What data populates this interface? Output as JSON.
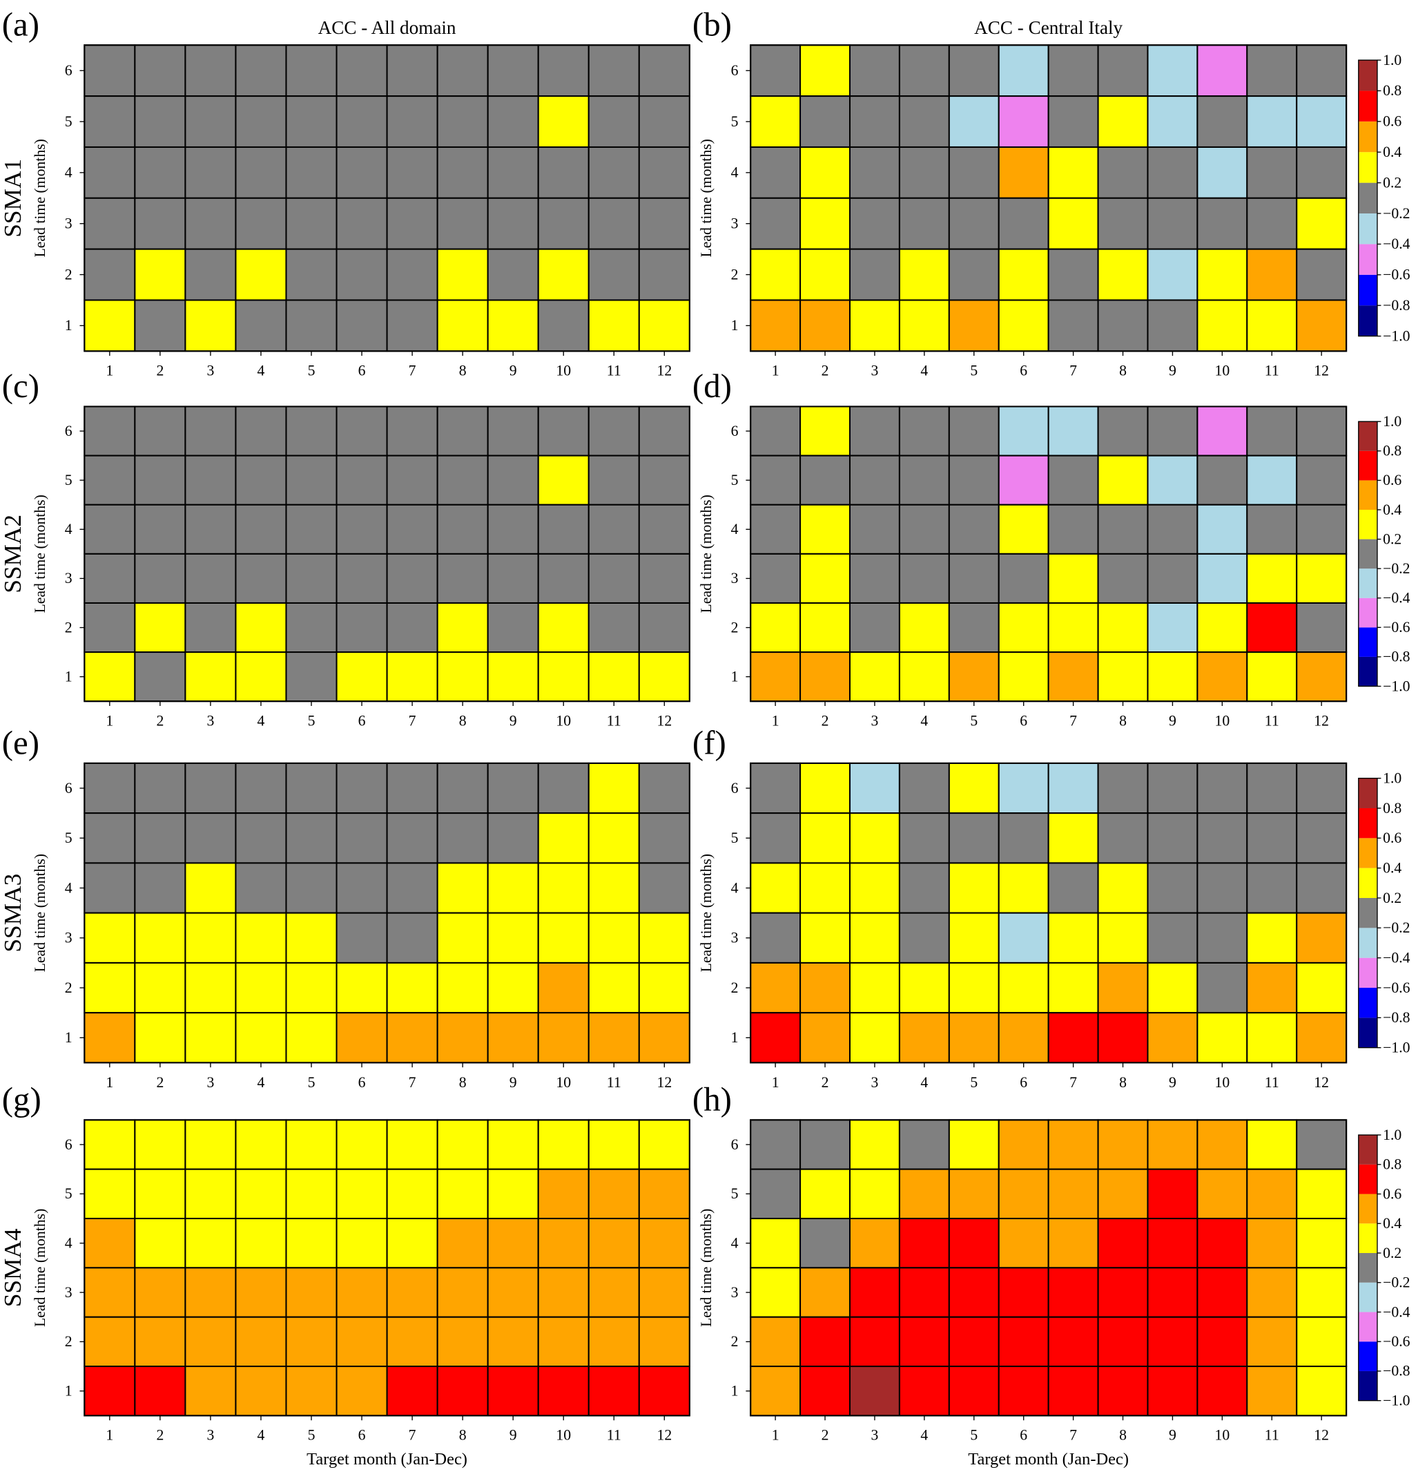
{
  "chart_data": {
    "type": "heatmap",
    "colorbar": {
      "bounds": [
        -1.0,
        -0.8,
        -0.6,
        -0.4,
        -0.2,
        0.2,
        0.4,
        0.6,
        0.8,
        1.0
      ],
      "tick_labels": [
        "−1.0",
        "−0.8",
        "−0.6",
        "−0.4",
        "−0.2",
        "0.2",
        "0.4",
        "0.6",
        "0.8",
        "1.0"
      ],
      "colors": [
        "#00008b",
        "#0000ff",
        "#ee82ee",
        "#add8e6",
        "#808080",
        "#ffff00",
        "#ffa500",
        "#ff0000",
        "#a52a2a"
      ]
    },
    "x_ticks": [
      "1",
      "2",
      "3",
      "4",
      "5",
      "6",
      "7",
      "8",
      "9",
      "10",
      "11",
      "12"
    ],
    "y_ticks": [
      "6",
      "5",
      "4",
      "3",
      "2",
      "1"
    ],
    "ylabel": "Lead time (months)",
    "xlabel": "Target month (Jan-Dec)",
    "note": "grid values are bin midpoints; rows ordered lead time 6 (top) to 1 (bottom), columns months 1-12",
    "panels": [
      {
        "letter": "(a)",
        "title": "ACC - All domain",
        "row_label": "SSMA1",
        "grid": [
          [
            0,
            0,
            0,
            0,
            0,
            0,
            0,
            0,
            0,
            0,
            0,
            0
          ],
          [
            0,
            0,
            0,
            0,
            0,
            0,
            0,
            0,
            0,
            0.3,
            0,
            0
          ],
          [
            0,
            0,
            0,
            0,
            0,
            0,
            0,
            0,
            0,
            0,
            0,
            0
          ],
          [
            0,
            0,
            0,
            0,
            0,
            0,
            0,
            0,
            0,
            0,
            0,
            0
          ],
          [
            0,
            0.3,
            0,
            0.3,
            0,
            0,
            0,
            0.3,
            0,
            0.3,
            0,
            0
          ],
          [
            0.3,
            0,
            0.3,
            0,
            0,
            0,
            0,
            0.3,
            0.3,
            0,
            0.3,
            0.3
          ]
        ]
      },
      {
        "letter": "(b)",
        "title": "ACC - Central Italy",
        "grid": [
          [
            0,
            0.3,
            0,
            0,
            0,
            -0.3,
            0,
            0,
            -0.3,
            -0.5,
            0,
            0
          ],
          [
            0.3,
            0,
            0,
            0,
            -0.3,
            -0.5,
            0,
            0.3,
            -0.3,
            0,
            -0.3,
            -0.3
          ],
          [
            0,
            0.3,
            0,
            0,
            0,
            0.5,
            0.3,
            0,
            0,
            -0.3,
            0,
            0
          ],
          [
            0,
            0.3,
            0,
            0,
            0,
            0,
            0.3,
            0,
            0,
            0,
            0,
            0.3
          ],
          [
            0.3,
            0.3,
            0,
            0.3,
            0,
            0.3,
            0,
            0.3,
            -0.3,
            0.3,
            0.5,
            0
          ],
          [
            0.5,
            0.5,
            0.3,
            0.3,
            0.5,
            0.3,
            0,
            0,
            0,
            0.3,
            0.3,
            0.5
          ]
        ]
      },
      {
        "letter": "(c)",
        "row_label": "SSMA2",
        "grid": [
          [
            0,
            0,
            0,
            0,
            0,
            0,
            0,
            0,
            0,
            0,
            0,
            0
          ],
          [
            0,
            0,
            0,
            0,
            0,
            0,
            0,
            0,
            0,
            0.3,
            0,
            0
          ],
          [
            0,
            0,
            0,
            0,
            0,
            0,
            0,
            0,
            0,
            0,
            0,
            0
          ],
          [
            0,
            0,
            0,
            0,
            0,
            0,
            0,
            0,
            0,
            0,
            0,
            0
          ],
          [
            0,
            0.3,
            0,
            0.3,
            0,
            0,
            0,
            0.3,
            0,
            0.3,
            0,
            0
          ],
          [
            0.3,
            0,
            0.3,
            0.3,
            0,
            0.3,
            0.3,
            0.3,
            0.3,
            0.3,
            0.3,
            0.3
          ]
        ]
      },
      {
        "letter": "(d)",
        "grid": [
          [
            0,
            0.3,
            0,
            0,
            0,
            -0.3,
            -0.3,
            0,
            0,
            -0.5,
            0,
            0
          ],
          [
            0,
            0,
            0,
            0,
            0,
            -0.5,
            0,
            0.3,
            -0.3,
            0,
            -0.3,
            0
          ],
          [
            0,
            0.3,
            0,
            0,
            0,
            0.3,
            0,
            0,
            0,
            -0.3,
            0,
            0
          ],
          [
            0,
            0.3,
            0,
            0,
            0,
            0,
            0.3,
            0,
            0,
            -0.3,
            0.3,
            0.3
          ],
          [
            0.3,
            0.3,
            0,
            0.3,
            0,
            0.3,
            0.3,
            0.3,
            -0.3,
            0.3,
            0.7,
            0
          ],
          [
            0.5,
            0.5,
            0.3,
            0.3,
            0.5,
            0.3,
            0.5,
            0.3,
            0.3,
            0.5,
            0.3,
            0.5
          ]
        ]
      },
      {
        "letter": "(e)",
        "row_label": "SSMA3",
        "grid": [
          [
            0,
            0,
            0,
            0,
            0,
            0,
            0,
            0,
            0,
            0,
            0.3,
            0
          ],
          [
            0,
            0,
            0,
            0,
            0,
            0,
            0,
            0,
            0,
            0.3,
            0.3,
            0
          ],
          [
            0,
            0,
            0.3,
            0,
            0,
            0,
            0,
            0.3,
            0.3,
            0.3,
            0.3,
            0
          ],
          [
            0.3,
            0.3,
            0.3,
            0.3,
            0.3,
            0,
            0,
            0.3,
            0.3,
            0.3,
            0.3,
            0.3
          ],
          [
            0.3,
            0.3,
            0.3,
            0.3,
            0.3,
            0.3,
            0.3,
            0.3,
            0.3,
            0.5,
            0.3,
            0.3
          ],
          [
            0.5,
            0.3,
            0.3,
            0.3,
            0.3,
            0.5,
            0.5,
            0.5,
            0.5,
            0.5,
            0.5,
            0.5
          ]
        ]
      },
      {
        "letter": "(f)",
        "grid": [
          [
            0,
            0.3,
            -0.3,
            0,
            0.3,
            -0.3,
            -0.3,
            0,
            0,
            0,
            0,
            0
          ],
          [
            0,
            0.3,
            0.3,
            0,
            0,
            0,
            0.3,
            0,
            0,
            0,
            0,
            0
          ],
          [
            0.3,
            0.3,
            0.3,
            0,
            0.3,
            0.3,
            0,
            0.3,
            0,
            0,
            0,
            0
          ],
          [
            0,
            0.3,
            0.3,
            0,
            0.3,
            -0.3,
            0.3,
            0.3,
            0,
            0,
            0.3,
            0.5
          ],
          [
            0.5,
            0.5,
            0.3,
            0.3,
            0.3,
            0.3,
            0.3,
            0.5,
            0.3,
            0,
            0.5,
            0.3
          ],
          [
            0.7,
            0.5,
            0.3,
            0.5,
            0.5,
            0.5,
            0.7,
            0.7,
            0.5,
            0.3,
            0.3,
            0.5
          ]
        ]
      },
      {
        "letter": "(g)",
        "row_label": "SSMA4",
        "grid": [
          [
            0.3,
            0.3,
            0.3,
            0.3,
            0.3,
            0.3,
            0.3,
            0.3,
            0.3,
            0.3,
            0.3,
            0.3
          ],
          [
            0.3,
            0.3,
            0.3,
            0.3,
            0.3,
            0.3,
            0.3,
            0.3,
            0.3,
            0.5,
            0.5,
            0.5
          ],
          [
            0.5,
            0.3,
            0.3,
            0.3,
            0.3,
            0.3,
            0.3,
            0.5,
            0.5,
            0.5,
            0.5,
            0.5
          ],
          [
            0.5,
            0.5,
            0.5,
            0.5,
            0.5,
            0.5,
            0.5,
            0.5,
            0.5,
            0.5,
            0.5,
            0.5
          ],
          [
            0.5,
            0.5,
            0.5,
            0.5,
            0.5,
            0.5,
            0.5,
            0.5,
            0.5,
            0.5,
            0.5,
            0.5
          ],
          [
            0.7,
            0.7,
            0.5,
            0.5,
            0.5,
            0.5,
            0.7,
            0.7,
            0.7,
            0.7,
            0.7,
            0.7
          ]
        ]
      },
      {
        "letter": "(h)",
        "grid": [
          [
            0,
            0,
            0.3,
            0,
            0.3,
            0.5,
            0.5,
            0.5,
            0.5,
            0.5,
            0.3,
            0
          ],
          [
            0,
            0.3,
            0.3,
            0.5,
            0.5,
            0.5,
            0.5,
            0.5,
            0.7,
            0.5,
            0.5,
            0.3
          ],
          [
            0.3,
            0,
            0.5,
            0.7,
            0.7,
            0.5,
            0.5,
            0.7,
            0.7,
            0.7,
            0.5,
            0.3
          ],
          [
            0.3,
            0.5,
            0.7,
            0.7,
            0.7,
            0.7,
            0.7,
            0.7,
            0.7,
            0.7,
            0.5,
            0.3
          ],
          [
            0.5,
            0.7,
            0.7,
            0.7,
            0.7,
            0.7,
            0.7,
            0.7,
            0.7,
            0.7,
            0.5,
            0.3
          ],
          [
            0.5,
            0.7,
            0.9,
            0.7,
            0.7,
            0.7,
            0.7,
            0.7,
            0.7,
            0.7,
            0.5,
            0.3
          ]
        ]
      }
    ]
  }
}
